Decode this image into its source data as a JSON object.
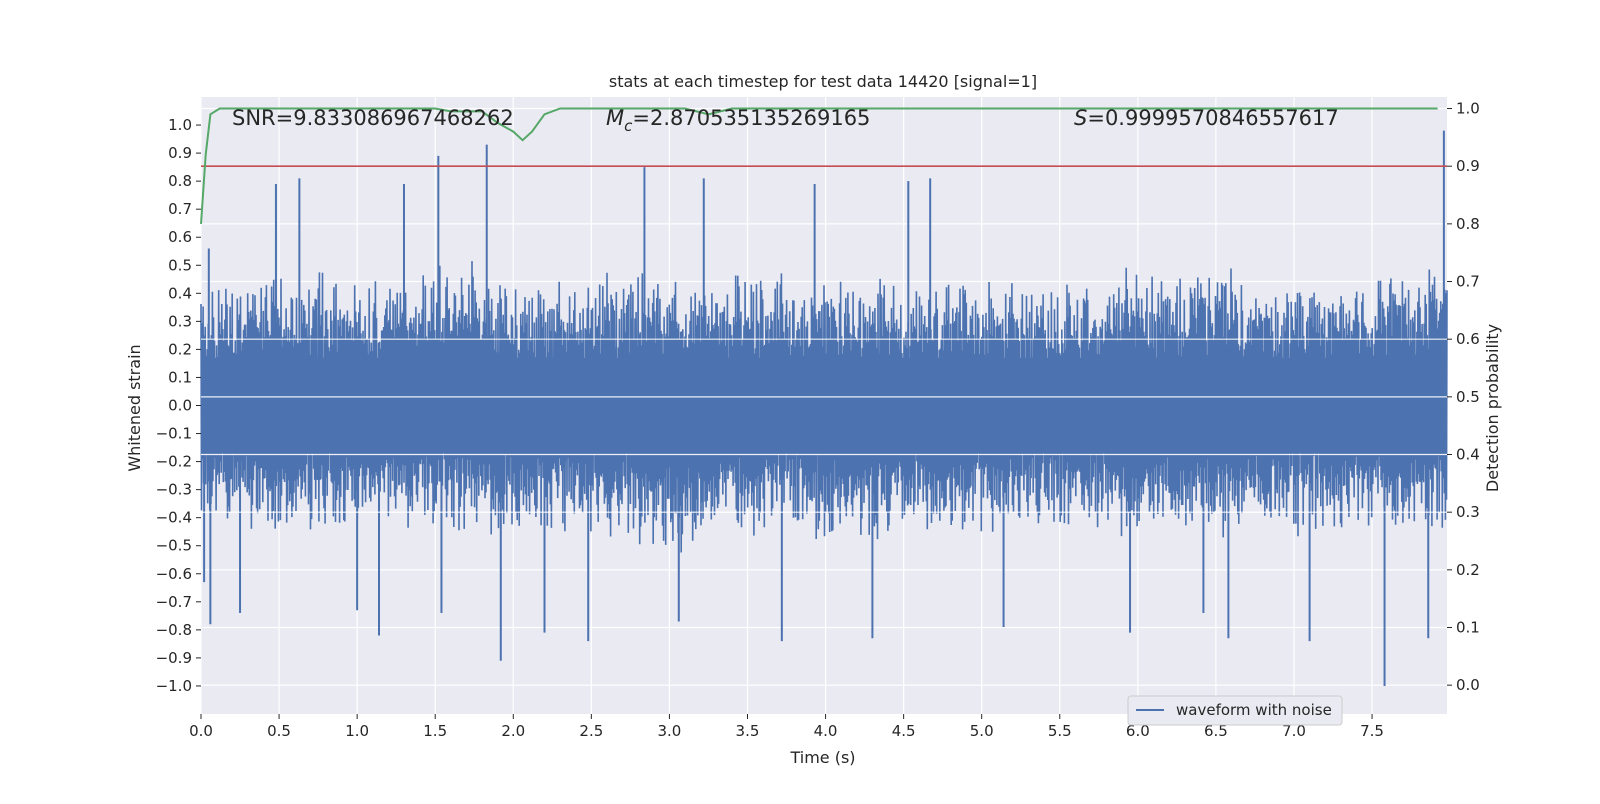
{
  "chart_data": {
    "type": "line",
    "title": "stats at each timestep for test data 14420 [signal=1]",
    "xlabel": "Time (s)",
    "ylabel_left": "Whitened strain",
    "ylabel_right": "Detection probability",
    "xlim": [
      0.0,
      7.98
    ],
    "ylim_left": [
      -1.1,
      1.1
    ],
    "ylim_right": [
      -0.05,
      1.02
    ],
    "x_ticks": [
      "0.0",
      "0.5",
      "1.0",
      "1.5",
      "2.0",
      "2.5",
      "3.0",
      "3.5",
      "4.0",
      "4.5",
      "5.0",
      "5.5",
      "6.0",
      "6.5",
      "7.0",
      "7.5"
    ],
    "x_tick_values": [
      0.0,
      0.5,
      1.0,
      1.5,
      2.0,
      2.5,
      3.0,
      3.5,
      4.0,
      4.5,
      5.0,
      5.5,
      6.0,
      6.5,
      7.0,
      7.5
    ],
    "y_left_ticks": [
      "1.0",
      "0.9",
      "0.8",
      "0.7",
      "0.6",
      "0.5",
      "0.4",
      "0.3",
      "0.2",
      "0.1",
      "0.0",
      "−0.1",
      "−0.2",
      "−0.3",
      "−0.4",
      "−0.5",
      "−0.6",
      "−0.7",
      "−0.8",
      "−0.9",
      "−1.0"
    ],
    "y_left_tick_values": [
      1.0,
      0.9,
      0.8,
      0.7,
      0.6,
      0.5,
      0.4,
      0.3,
      0.2,
      0.1,
      0.0,
      -0.1,
      -0.2,
      -0.3,
      -0.4,
      -0.5,
      -0.6,
      -0.7,
      -0.8,
      -0.9,
      -1.0
    ],
    "y_right_ticks": [
      "1.0",
      "0.9",
      "0.8",
      "0.7",
      "0.6",
      "0.5",
      "0.4",
      "0.3",
      "0.2",
      "0.1",
      "0.0"
    ],
    "y_right_tick_values": [
      1.0,
      0.9,
      0.8,
      0.7,
      0.6,
      0.5,
      0.4,
      0.3,
      0.2,
      0.1,
      0.0
    ],
    "annotations": {
      "snr": "SNR=9.833086967468262",
      "mc_symbol": "M",
      "mc_sub": "c",
      "mc_value": "=2.870535135269165",
      "s_symbol": "S",
      "s_value": "=0.9999570846557617"
    },
    "series": [
      {
        "name": "waveform with noise",
        "axis": "left",
        "color": "#4c72b0",
        "description": "dense noisy whitened strain, roughly within -0.5..0.55 with spikes",
        "envelope": {
          "x": [
            0.0,
            0.5,
            1.0,
            1.5,
            2.0,
            2.5,
            3.0,
            3.5,
            4.0,
            4.5,
            5.0,
            5.5,
            6.0,
            6.5,
            7.0,
            7.5,
            7.98
          ],
          "upper": [
            0.45,
            0.5,
            0.48,
            0.55,
            0.5,
            0.47,
            0.52,
            0.5,
            0.48,
            0.5,
            0.48,
            0.47,
            0.5,
            0.5,
            0.48,
            0.5,
            0.55
          ],
          "lower": [
            -0.45,
            -0.5,
            -0.48,
            -0.5,
            -0.5,
            -0.48,
            -0.55,
            -0.5,
            -0.5,
            -0.5,
            -0.48,
            -0.48,
            -0.5,
            -0.5,
            -0.48,
            -0.5,
            -0.5
          ]
        },
        "spikes": [
          {
            "x": 0.02,
            "y": -0.63
          },
          {
            "x": 0.05,
            "y": 0.56
          },
          {
            "x": 0.06,
            "y": -0.78
          },
          {
            "x": 0.25,
            "y": -0.74
          },
          {
            "x": 0.48,
            "y": 0.79
          },
          {
            "x": 0.63,
            "y": 0.81
          },
          {
            "x": 1.0,
            "y": -0.73
          },
          {
            "x": 1.14,
            "y": -0.82
          },
          {
            "x": 1.3,
            "y": 0.79
          },
          {
            "x": 1.52,
            "y": 0.89
          },
          {
            "x": 1.54,
            "y": -0.74
          },
          {
            "x": 1.83,
            "y": 0.93
          },
          {
            "x": 1.92,
            "y": -0.91
          },
          {
            "x": 2.2,
            "y": -0.81
          },
          {
            "x": 2.48,
            "y": -0.84
          },
          {
            "x": 2.84,
            "y": 0.85
          },
          {
            "x": 3.06,
            "y": -0.77
          },
          {
            "x": 3.22,
            "y": 0.81
          },
          {
            "x": 3.72,
            "y": -0.84
          },
          {
            "x": 3.93,
            "y": 0.79
          },
          {
            "x": 4.3,
            "y": -0.83
          },
          {
            "x": 4.53,
            "y": 0.8
          },
          {
            "x": 4.67,
            "y": 0.81
          },
          {
            "x": 5.14,
            "y": -0.79
          },
          {
            "x": 5.95,
            "y": -0.81
          },
          {
            "x": 6.42,
            "y": -0.74
          },
          {
            "x": 6.58,
            "y": -0.83
          },
          {
            "x": 7.1,
            "y": -0.84
          },
          {
            "x": 7.58,
            "y": -1.0
          },
          {
            "x": 7.86,
            "y": -0.83
          },
          {
            "x": 7.96,
            "y": 0.98
          }
        ]
      },
      {
        "name": "detection probability",
        "axis": "right",
        "color": "#55a868",
        "x": [
          0.0,
          0.03,
          0.06,
          0.12,
          0.2,
          0.5,
          1.0,
          1.5,
          1.6,
          1.7,
          1.8,
          1.9,
          2.0,
          2.06,
          2.12,
          2.2,
          2.3,
          2.5,
          3.0,
          3.1,
          3.25,
          3.4,
          3.6,
          4.0,
          5.0,
          6.0,
          7.0,
          7.92
        ],
        "y": [
          0.8,
          0.92,
          0.99,
          1.0,
          1.0,
          1.0,
          1.0,
          1.0,
          0.995,
          0.995,
          0.995,
          0.975,
          0.96,
          0.945,
          0.96,
          0.99,
          1.0,
          1.0,
          1.0,
          1.0,
          0.99,
          1.0,
          1.0,
          1.0,
          1.0,
          1.0,
          1.0,
          1.0
        ]
      },
      {
        "name": "threshold",
        "axis": "right",
        "color": "#c44e52",
        "x": [
          0.0,
          7.98
        ],
        "y": [
          0.9,
          0.9
        ]
      }
    ],
    "legend": {
      "entries": [
        "waveform with noise"
      ],
      "placement": "lower-right"
    },
    "grid": true
  },
  "colors": {
    "plot_background": "#eaeaf2",
    "grid": "#ffffff",
    "waveform": "#4c72b0",
    "probability": "#55a868",
    "threshold": "#c44e52"
  }
}
